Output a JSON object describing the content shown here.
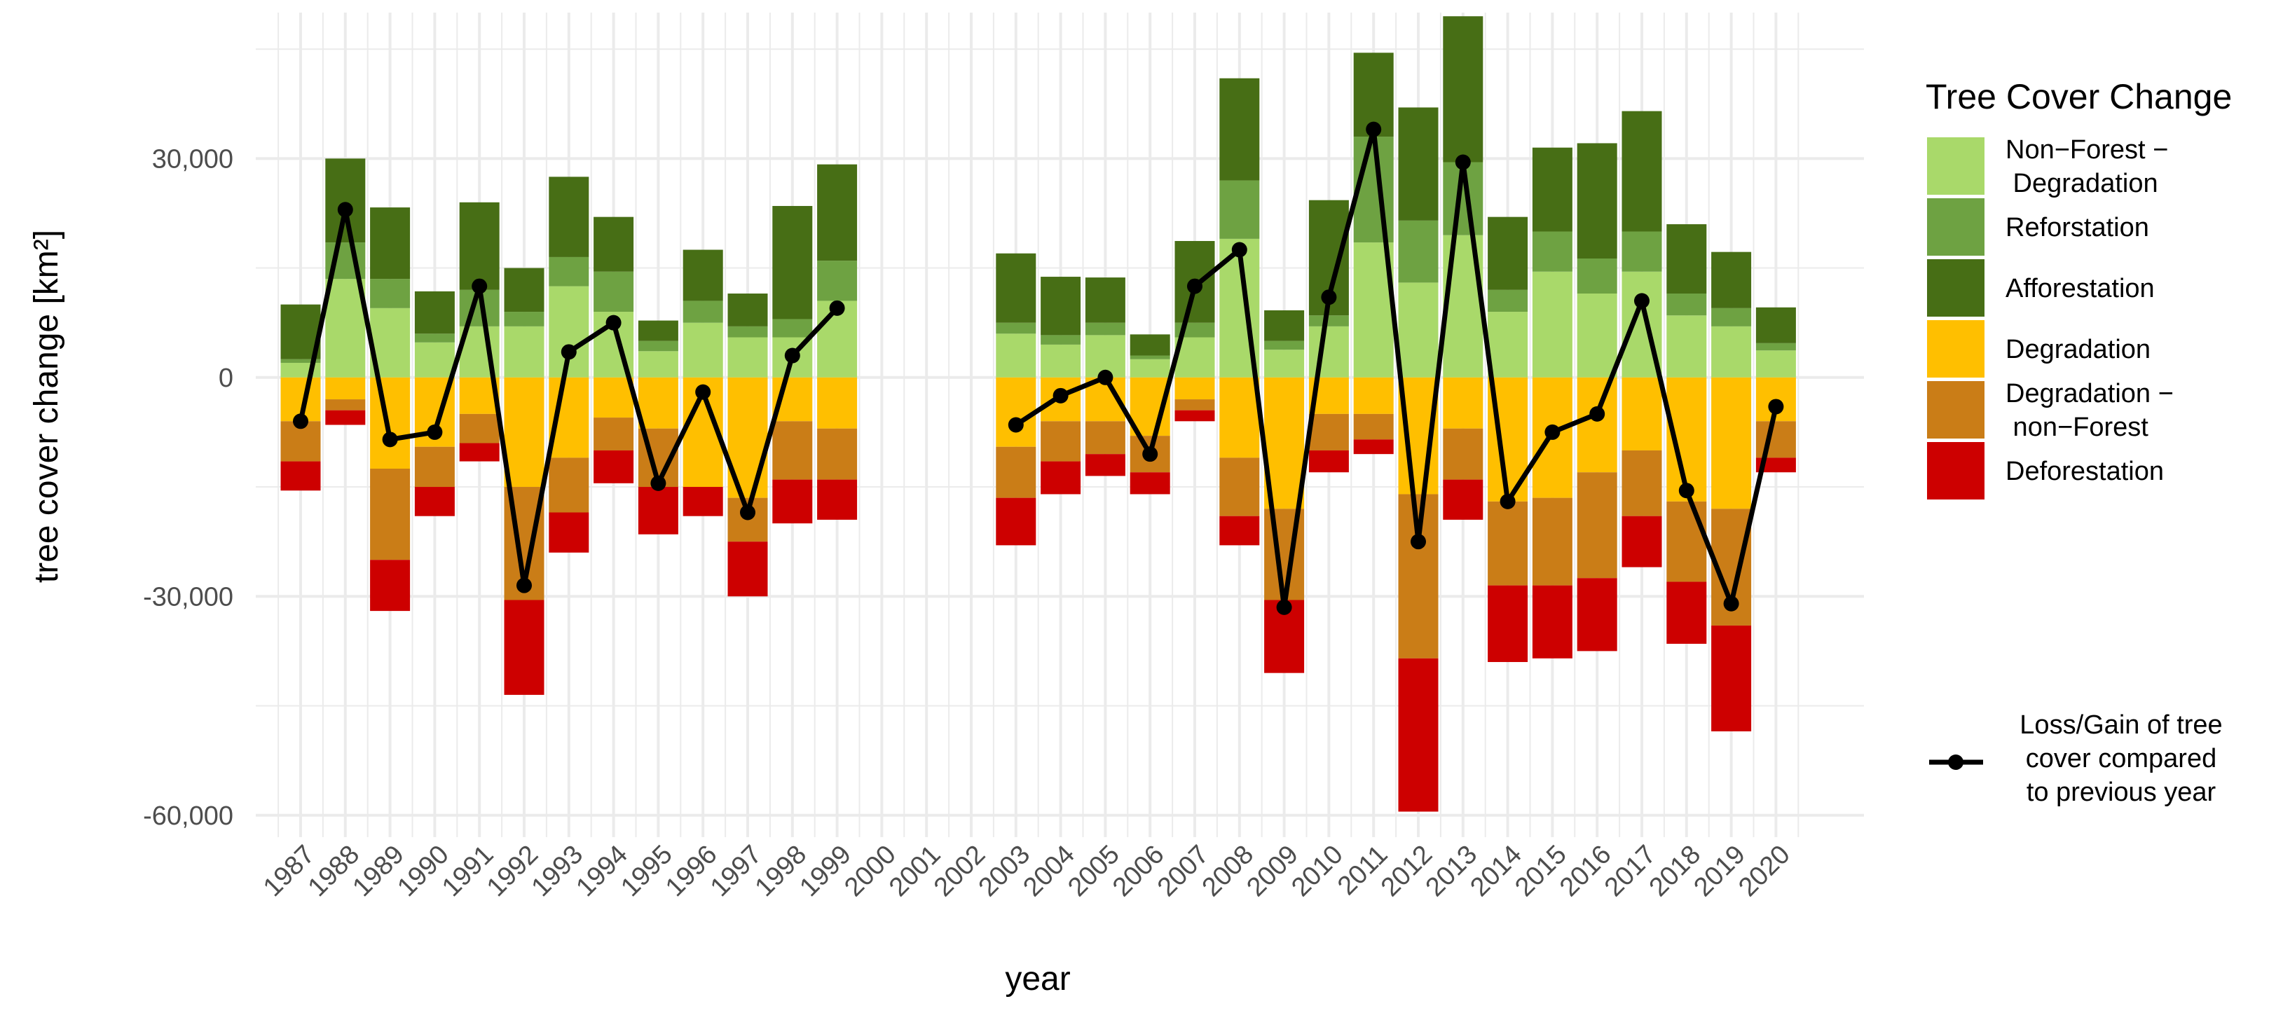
{
  "chart_data": {
    "type": "bar",
    "subtype": "stacked-bar-with-line",
    "title": "",
    "xlabel": "year",
    "ylabel": "tree cover change [km²]",
    "ylim": [
      -63000,
      50000
    ],
    "y_ticks": [
      30000,
      0,
      -30000,
      -60000
    ],
    "y_tick_labels": [
      "30,000",
      "0",
      "-30,000",
      "-60,000"
    ],
    "categories": [
      "1987",
      "1988",
      "1989",
      "1990",
      "1991",
      "1992",
      "1993",
      "1994",
      "1995",
      "1996",
      "1997",
      "1998",
      "1999",
      "2000",
      "2001",
      "2002",
      "2003",
      "2004",
      "2005",
      "2006",
      "2007",
      "2008",
      "2009",
      "2010",
      "2011",
      "2012",
      "2013",
      "2014",
      "2015",
      "2016",
      "2017",
      "2018",
      "2019",
      "2020"
    ],
    "legend_title": "Tree Cover Change",
    "legend_position": "right",
    "series": [
      {
        "name": "Non−Forest −\n Degradation",
        "color": "#a9d96a",
        "sign": "positive",
        "values": [
          2000,
          13500,
          9500,
          4800,
          7000,
          7000,
          12500,
          9000,
          3600,
          7500,
          5500,
          5500,
          10500,
          null,
          null,
          null,
          6000,
          4500,
          5800,
          2500,
          5500,
          19000,
          3800,
          7000,
          18500,
          13000,
          19500,
          9000,
          14500,
          11500,
          14500,
          8500,
          7000,
          3700
        ]
      },
      {
        "name": "Reforstation",
        "color": "#6ea242",
        "sign": "positive",
        "values": [
          500,
          5000,
          4000,
          1200,
          5000,
          2000,
          4000,
          5500,
          1400,
          3000,
          1500,
          2500,
          5500,
          null,
          null,
          null,
          1500,
          1300,
          1700,
          500,
          2000,
          8000,
          1200,
          1500,
          14500,
          8500,
          10000,
          3000,
          5500,
          4800,
          5500,
          3000,
          2500,
          1000
        ]
      },
      {
        "name": "Afforestation",
        "color": "#476e15",
        "sign": "positive",
        "values": [
          7500,
          11500,
          9800,
          5800,
          12000,
          6000,
          11000,
          7500,
          2800,
          7000,
          4500,
          15500,
          13200,
          null,
          null,
          null,
          9500,
          8000,
          6200,
          2900,
          11200,
          14000,
          4200,
          15800,
          11500,
          15500,
          20000,
          10000,
          11500,
          15800,
          16500,
          9500,
          7700,
          4900
        ]
      },
      {
        "name": "Degradation",
        "color": "#ffbf00",
        "sign": "negative",
        "values": [
          -6000,
          -3000,
          -12500,
          -9500,
          -5000,
          -15000,
          -11000,
          -5500,
          -7000,
          -15000,
          -16500,
          -6000,
          -7000,
          null,
          null,
          null,
          -9500,
          -6000,
          -6000,
          -8000,
          -3000,
          -11000,
          -18000,
          -5000,
          -5000,
          -16000,
          -7000,
          -17000,
          -16500,
          -13000,
          -10000,
          -17000,
          -18000,
          -6000
        ]
      },
      {
        "name": "Degradation −\n non−Forest",
        "color": "#ca7d17",
        "sign": "negative",
        "values": [
          -5500,
          -1500,
          -12500,
          -5500,
          -4000,
          -15500,
          -7500,
          -4500,
          -8000,
          0,
          -6000,
          -8000,
          -7000,
          null,
          null,
          null,
          -7000,
          -5500,
          -4500,
          -5000,
          -1500,
          -8000,
          -12500,
          -5000,
          -3500,
          -22500,
          -7000,
          -11500,
          -12000,
          -14500,
          -9000,
          -11000,
          -16000,
          -5000
        ]
      },
      {
        "name": "Deforestation",
        "color": "#cd0000",
        "sign": "negative",
        "values": [
          -4000,
          -2000,
          -7000,
          -4000,
          -2500,
          -13000,
          -5500,
          -4500,
          -6500,
          -4000,
          -7500,
          -6000,
          -5500,
          null,
          null,
          null,
          -6500,
          -4500,
          -3000,
          -3000,
          -1500,
          -4000,
          -10000,
          -3000,
          -2000,
          -21000,
          -5500,
          -10500,
          -10000,
          -10000,
          -7000,
          -8500,
          -14500,
          -2000
        ]
      }
    ],
    "line_series": {
      "name": "Loss/Gain of tree\ncover compared\nto previous year",
      "color": "#000000",
      "values": [
        -6000,
        23000,
        -8500,
        -7500,
        12500,
        -28500,
        3500,
        7500,
        -14500,
        -2000,
        -18500,
        3000,
        9500,
        null,
        null,
        null,
        -6500,
        -2500,
        0,
        -10500,
        12500,
        17500,
        -31500,
        11000,
        34000,
        -22500,
        29500,
        -17000,
        -7500,
        -5000,
        10500,
        -15500,
        -31000,
        -4000
      ]
    }
  }
}
